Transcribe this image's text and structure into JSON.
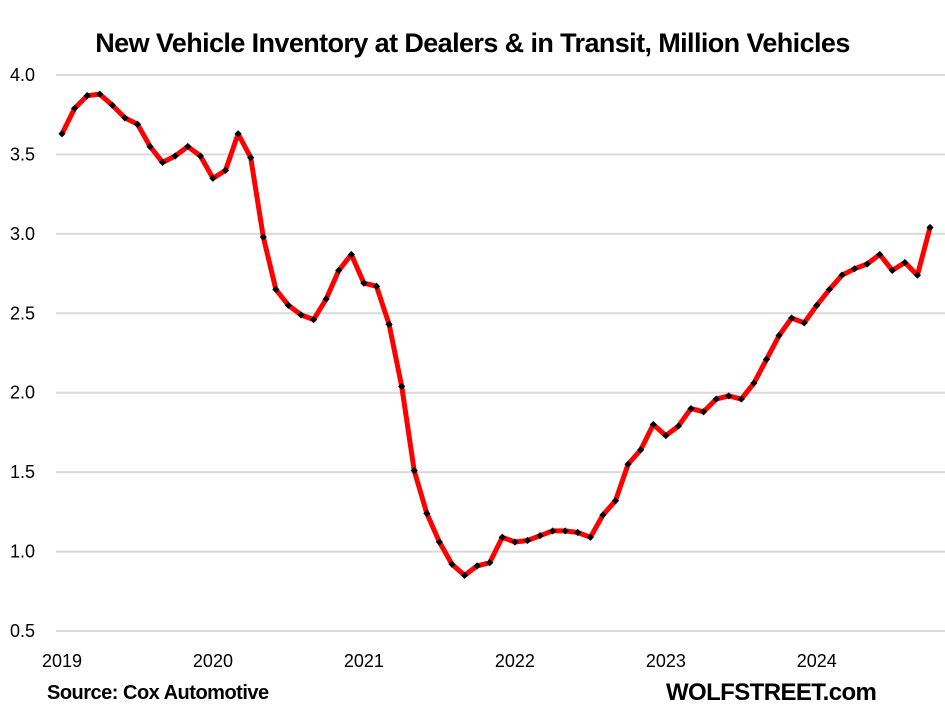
{
  "chart_data": {
    "type": "line",
    "title": "New Vehicle Inventory at Dealers & in Transit,  Million Vehicles",
    "source": "Source: Cox Automotive",
    "brand": "WOLFSTREET.com",
    "xlabel": "",
    "ylabel": "",
    "ylim": [
      0.5,
      4.0
    ],
    "yticks": [
      "0.5",
      "1.0",
      "1.5",
      "2.0",
      "2.5",
      "3.0",
      "3.5",
      "4.0"
    ],
    "ytick_values": [
      0.5,
      1.0,
      1.5,
      2.0,
      2.5,
      3.0,
      3.5,
      4.0
    ],
    "xticks": [
      "2019",
      "2020",
      "2021",
      "2022",
      "2023",
      "2024"
    ],
    "xtick_month_index": [
      0,
      12,
      24,
      36,
      48,
      60
    ],
    "grid": true,
    "series": [
      {
        "name": "New Vehicle Inventory",
        "color": "#ff0000",
        "marker_color": "#000000",
        "start": "2019-01",
        "frequency": "monthly",
        "values": [
          3.63,
          3.79,
          3.87,
          3.88,
          3.81,
          3.73,
          3.69,
          3.55,
          3.45,
          3.49,
          3.55,
          3.49,
          3.35,
          3.4,
          3.63,
          3.48,
          2.98,
          2.65,
          2.55,
          2.49,
          2.46,
          2.59,
          2.77,
          2.87,
          2.69,
          2.67,
          2.43,
          2.04,
          1.51,
          1.24,
          1.06,
          0.92,
          0.85,
          0.91,
          0.93,
          1.09,
          1.06,
          1.07,
          1.1,
          1.13,
          1.13,
          1.12,
          1.09,
          1.23,
          1.32,
          1.55,
          1.64,
          1.8,
          1.73,
          1.79,
          1.9,
          1.88,
          1.96,
          1.98,
          1.96,
          2.06,
          2.21,
          2.36,
          2.47,
          2.44,
          2.55,
          2.65,
          2.74,
          2.78,
          2.81,
          2.87,
          2.77,
          2.82,
          2.74,
          3.04
        ]
      }
    ],
    "colors": {
      "gridline": "#d9d9d9",
      "line": "#ff0000",
      "marker": "#000000",
      "text": "#000000"
    }
  }
}
